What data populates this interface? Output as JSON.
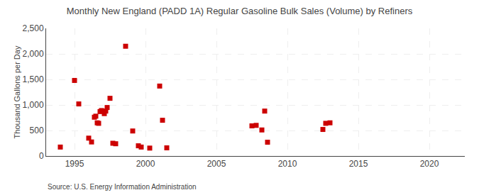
{
  "chart_data": {
    "type": "scatter",
    "title": "Monthly New England (PADD 1A) Regular Gasoline Bulk Sales (Volume) by Refiners",
    "ylabel": "Thousand Gallons per Day",
    "annotations": [
      "Source: U.S. Energy Information Administration"
    ],
    "x": [
      1994.0,
      1995.0,
      1995.3,
      1996.0,
      1996.2,
      1996.4,
      1996.5,
      1996.6,
      1996.7,
      1996.8,
      1996.9,
      1997.1,
      1997.2,
      1997.3,
      1997.5,
      1997.7,
      1997.9,
      1998.6,
      1999.1,
      1999.5,
      1999.7,
      2000.3,
      2001.0,
      2001.2,
      2001.5,
      2007.5,
      2007.8,
      2008.2,
      2008.4,
      2008.6,
      2012.5,
      2012.7,
      2013.0
    ],
    "values": [
      175,
      1480,
      1020,
      350,
      275,
      760,
      780,
      650,
      640,
      870,
      890,
      830,
      880,
      950,
      1130,
      250,
      240,
      2150,
      490,
      200,
      175,
      155,
      1370,
      700,
      160,
      590,
      600,
      510,
      880,
      270,
      520,
      640,
      650
    ],
    "color": "#cc0000",
    "marker": "square",
    "xlim": [
      1993.0,
      2022.5
    ],
    "ylim": [
      0,
      2500
    ],
    "xticks": [
      1995,
      2000,
      2005,
      2010,
      2015,
      2020
    ],
    "yticks": [
      0,
      500,
      {
        "value": 1000,
        "label": "1,000"
      },
      {
        "value": 1500,
        "label": "1,500"
      },
      {
        "value": 2000,
        "label": "2,000"
      },
      {
        "value": 2500,
        "label": "2,500"
      }
    ],
    "grid": true
  }
}
